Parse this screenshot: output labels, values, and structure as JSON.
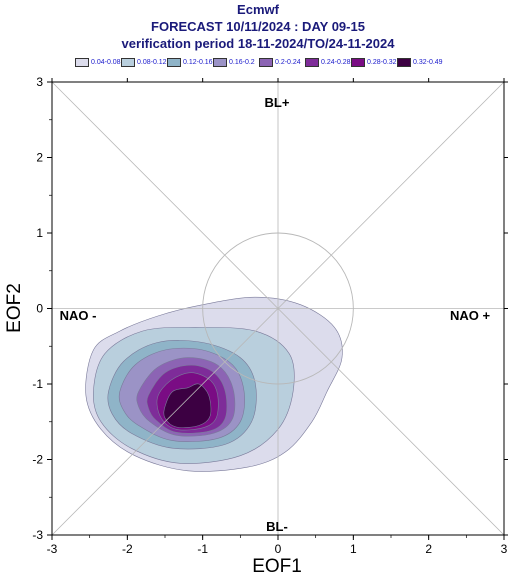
{
  "header": {
    "line1": "Ecmwf",
    "line2": "FORECAST 10/11/2024 : DAY 09-15",
    "line3": "verification period 18-11-2024/TO/24-11-2024"
  },
  "legend": {
    "items": [
      {
        "label": "0.04-0.08",
        "color": "#dcdcec"
      },
      {
        "label": "0.08-0.12",
        "color": "#b9cfdd"
      },
      {
        "label": "0.12-0.16",
        "color": "#8fb4c8"
      },
      {
        "label": "0.16-0.2",
        "color": "#9b93c6"
      },
      {
        "label": "0.2-0.24",
        "color": "#8c64b4"
      },
      {
        "label": "0.24-0.28",
        "color": "#7e2c99"
      },
      {
        "label": "0.28-0.32",
        "color": "#7a0c84"
      },
      {
        "label": "0.32-0.49",
        "color": "#3c0042"
      }
    ]
  },
  "quadrants": {
    "top": "BL+",
    "bottom": "BL-",
    "left": "NAO -",
    "right": "NAO +"
  },
  "chart_data": {
    "type": "contour density",
    "xlabel": "EOF1",
    "ylabel": "EOF2",
    "xlim": [
      -3,
      3
    ],
    "ylim": [
      -3,
      3
    ],
    "xticks": [
      "-3",
      "-2",
      "-1",
      "0",
      "1",
      "2",
      "3"
    ],
    "yticks": [
      "-3",
      "-2",
      "-1",
      "0",
      "1",
      "2",
      "3"
    ],
    "reference_circle": {
      "center": [
        0,
        0
      ],
      "radius": 1
    },
    "levels": [
      {
        "range": "0.04-0.08",
        "color": "#dcdcec",
        "polygon": [
          [
            -2.55,
            -1.15
          ],
          [
            -2.45,
            -0.55
          ],
          [
            -2.1,
            -0.3
          ],
          [
            -1.6,
            -0.1
          ],
          [
            -1.0,
            0.05
          ],
          [
            -0.3,
            0.15
          ],
          [
            0.3,
            0.05
          ],
          [
            0.75,
            -0.25
          ],
          [
            0.85,
            -0.65
          ],
          [
            0.65,
            -1.1
          ],
          [
            0.45,
            -1.5
          ],
          [
            0.1,
            -1.9
          ],
          [
            -0.4,
            -2.1
          ],
          [
            -1.2,
            -2.15
          ],
          [
            -1.9,
            -1.95
          ],
          [
            -2.35,
            -1.6
          ]
        ]
      },
      {
        "range": "0.08-0.12",
        "color": "#b9cfdd",
        "polygon": [
          [
            -2.45,
            -1.1
          ],
          [
            -2.3,
            -0.6
          ],
          [
            -1.8,
            -0.3
          ],
          [
            -1.1,
            -0.25
          ],
          [
            -0.3,
            -0.3
          ],
          [
            0.15,
            -0.6
          ],
          [
            0.2,
            -1.1
          ],
          [
            0.0,
            -1.6
          ],
          [
            -0.5,
            -1.95
          ],
          [
            -1.3,
            -2.05
          ],
          [
            -1.95,
            -1.85
          ],
          [
            -2.35,
            -1.5
          ]
        ]
      },
      {
        "range": "0.12-0.16",
        "color": "#8fb4c8",
        "polygon": [
          [
            -2.25,
            -1.1
          ],
          [
            -2.05,
            -0.7
          ],
          [
            -1.6,
            -0.45
          ],
          [
            -1.0,
            -0.45
          ],
          [
            -0.5,
            -0.65
          ],
          [
            -0.3,
            -1.0
          ],
          [
            -0.35,
            -1.5
          ],
          [
            -0.7,
            -1.8
          ],
          [
            -1.4,
            -1.85
          ],
          [
            -1.95,
            -1.65
          ],
          [
            -2.2,
            -1.4
          ]
        ]
      },
      {
        "range": "0.16-0.2",
        "color": "#9b93c6",
        "polygon": [
          [
            -2.1,
            -1.1
          ],
          [
            -1.9,
            -0.75
          ],
          [
            -1.5,
            -0.55
          ],
          [
            -1.0,
            -0.55
          ],
          [
            -0.6,
            -0.75
          ],
          [
            -0.45,
            -1.1
          ],
          [
            -0.5,
            -1.5
          ],
          [
            -0.8,
            -1.72
          ],
          [
            -1.4,
            -1.75
          ],
          [
            -1.85,
            -1.55
          ],
          [
            -2.05,
            -1.35
          ]
        ]
      },
      {
        "range": "0.2-0.24",
        "color": "#8c64b4",
        "polygon": [
          [
            -1.85,
            -1.1
          ],
          [
            -1.6,
            -0.78
          ],
          [
            -1.2,
            -0.65
          ],
          [
            -0.8,
            -0.75
          ],
          [
            -0.6,
            -1.05
          ],
          [
            -0.6,
            -1.45
          ],
          [
            -0.85,
            -1.65
          ],
          [
            -1.35,
            -1.68
          ],
          [
            -1.7,
            -1.5
          ],
          [
            -1.85,
            -1.3
          ]
        ]
      },
      {
        "range": "0.24-0.28",
        "color": "#7e2c99",
        "polygon": [
          [
            -1.72,
            -1.15
          ],
          [
            -1.5,
            -0.85
          ],
          [
            -1.15,
            -0.75
          ],
          [
            -0.85,
            -0.85
          ],
          [
            -0.7,
            -1.1
          ],
          [
            -0.7,
            -1.45
          ],
          [
            -0.9,
            -1.62
          ],
          [
            -1.35,
            -1.64
          ],
          [
            -1.62,
            -1.48
          ],
          [
            -1.72,
            -1.32
          ]
        ]
      },
      {
        "range": "0.28-0.32",
        "color": "#7a0c84",
        "polygon": [
          [
            -1.6,
            -1.18
          ],
          [
            -1.42,
            -0.95
          ],
          [
            -1.15,
            -0.85
          ],
          [
            -0.9,
            -0.95
          ],
          [
            -0.8,
            -1.15
          ],
          [
            -0.82,
            -1.45
          ],
          [
            -1.0,
            -1.58
          ],
          [
            -1.35,
            -1.6
          ],
          [
            -1.55,
            -1.45
          ]
        ]
      },
      {
        "range": "0.32-0.49",
        "color": "#3c0042",
        "polygon": [
          [
            -1.5,
            -1.3
          ],
          [
            -1.4,
            -1.1
          ],
          [
            -1.2,
            -1.05
          ],
          [
            -1.05,
            -1.0
          ],
          [
            -0.92,
            -1.15
          ],
          [
            -0.9,
            -1.42
          ],
          [
            -1.05,
            -1.55
          ],
          [
            -1.35,
            -1.57
          ],
          [
            -1.5,
            -1.45
          ]
        ]
      }
    ]
  }
}
